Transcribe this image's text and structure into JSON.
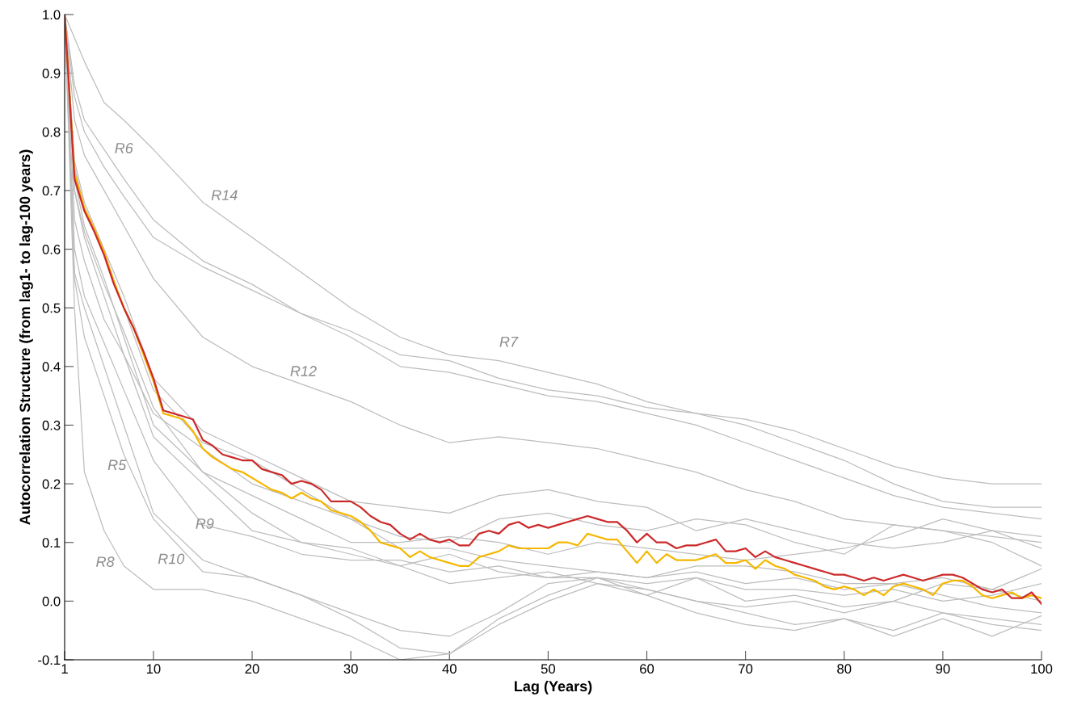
{
  "chart_data": {
    "type": "line",
    "xlabel": "Lag (Years)",
    "ylabel": "Autocorrelation Structure (from lag1- to lag-100 years)",
    "xlim": [
      1,
      100
    ],
    "xticks": [
      1,
      10,
      20,
      30,
      40,
      50,
      60,
      70,
      80,
      90,
      100
    ],
    "ylim": [
      -0.1,
      1.0
    ],
    "yticks": [
      -0.1,
      {
        "value": 0.0,
        "label": "0.0"
      },
      0.1,
      0.2,
      0.3,
      0.4,
      0.5,
      0.6,
      0.7,
      0.8,
      0.9,
      {
        "value": 1.0,
        "label": "1.0"
      }
    ],
    "grid": false,
    "marker": "none",
    "line_style": "solid",
    "series": [
      {
        "color": "#bdbdbd",
        "x": [
          1,
          2,
          3,
          5,
          7,
          10,
          15,
          20,
          25,
          30,
          35,
          40,
          45,
          50,
          55,
          60,
          65,
          70,
          75,
          80,
          85,
          90,
          95,
          100
        ],
        "values": [
          1.0,
          0.96,
          0.92,
          0.85,
          0.82,
          0.77,
          0.68,
          0.62,
          0.56,
          0.5,
          0.45,
          0.42,
          0.41,
          0.39,
          0.37,
          0.34,
          0.32,
          0.31,
          0.29,
          0.26,
          0.23,
          0.21,
          0.2,
          0.2
        ]
      },
      {
        "color": "#bdbdbd",
        "x": [
          1,
          2,
          3,
          5,
          7,
          10,
          15,
          20,
          25,
          30,
          35,
          40,
          45,
          50,
          55,
          60,
          65,
          70,
          75,
          80,
          85,
          90,
          95,
          100
        ],
        "values": [
          1.0,
          0.88,
          0.82,
          0.77,
          0.72,
          0.65,
          0.58,
          0.54,
          0.49,
          0.46,
          0.42,
          0.41,
          0.38,
          0.36,
          0.35,
          0.33,
          0.32,
          0.3,
          0.27,
          0.24,
          0.2,
          0.17,
          0.16,
          0.16
        ]
      },
      {
        "color": "#bdbdbd",
        "x": [
          1,
          2,
          3,
          5,
          7,
          10,
          15,
          20,
          25,
          30,
          35,
          40,
          45,
          50,
          55,
          60,
          65,
          70,
          75,
          80,
          85,
          90,
          95,
          100
        ],
        "values": [
          1.0,
          0.86,
          0.8,
          0.74,
          0.69,
          0.62,
          0.57,
          0.53,
          0.49,
          0.45,
          0.4,
          0.39,
          0.37,
          0.35,
          0.34,
          0.32,
          0.3,
          0.27,
          0.24,
          0.21,
          0.18,
          0.16,
          0.15,
          0.14
        ]
      },
      {
        "color": "#bdbdbd",
        "x": [
          1,
          2,
          3,
          5,
          7,
          10,
          15,
          20,
          25,
          30,
          35,
          40,
          45,
          50,
          55,
          60,
          65,
          70,
          75,
          80,
          85,
          90,
          95,
          100
        ],
        "values": [
          1.0,
          0.82,
          0.76,
          0.7,
          0.64,
          0.55,
          0.45,
          0.4,
          0.37,
          0.34,
          0.3,
          0.27,
          0.28,
          0.27,
          0.26,
          0.24,
          0.22,
          0.19,
          0.17,
          0.14,
          0.13,
          0.12,
          0.11,
          0.1
        ]
      },
      {
        "color": "#bdbdbd",
        "x": [
          1,
          2,
          3,
          5,
          7,
          10,
          15,
          20,
          25,
          30,
          35,
          40,
          45,
          50,
          55,
          60,
          65,
          70,
          75,
          80,
          85,
          90,
          95,
          100
        ],
        "values": [
          1.0,
          0.75,
          0.68,
          0.6,
          0.52,
          0.38,
          0.29,
          0.25,
          0.21,
          0.17,
          0.16,
          0.15,
          0.18,
          0.19,
          0.17,
          0.16,
          0.12,
          0.14,
          0.12,
          0.1,
          0.09,
          0.1,
          0.12,
          0.11
        ]
      },
      {
        "color": "#bdbdbd",
        "x": [
          1,
          2,
          3,
          5,
          7,
          10,
          15,
          20,
          25,
          30,
          35,
          40,
          45,
          50,
          55,
          60,
          65,
          70,
          75,
          80,
          85,
          90,
          95,
          100
        ],
        "values": [
          1.0,
          0.74,
          0.67,
          0.59,
          0.5,
          0.36,
          0.27,
          0.24,
          0.19,
          0.14,
          0.11,
          0.1,
          0.14,
          0.15,
          0.13,
          0.12,
          0.14,
          0.13,
          0.1,
          0.08,
          0.13,
          0.12,
          0.1,
          0.06
        ]
      },
      {
        "color": "#bdbdbd",
        "x": [
          1,
          2,
          3,
          5,
          7,
          10,
          15,
          20,
          25,
          30,
          35,
          40,
          45,
          50,
          55,
          60,
          65,
          70,
          75,
          80,
          85,
          90,
          95,
          100
        ],
        "values": [
          1.0,
          0.7,
          0.63,
          0.54,
          0.46,
          0.33,
          0.22,
          0.18,
          0.14,
          0.1,
          0.1,
          0.11,
          0.1,
          0.08,
          0.1,
          0.09,
          0.08,
          0.07,
          0.08,
          0.09,
          0.11,
          0.14,
          0.12,
          0.09
        ]
      },
      {
        "color": "#bdbdbd",
        "x": [
          1,
          2,
          3,
          5,
          7,
          10,
          15,
          20,
          25,
          30,
          35,
          40,
          45,
          50,
          55,
          60,
          65,
          70,
          75,
          80,
          85,
          90,
          95,
          100
        ],
        "values": [
          1.0,
          0.72,
          0.64,
          0.55,
          0.45,
          0.3,
          0.22,
          0.15,
          0.1,
          0.09,
          0.06,
          0.03,
          0.04,
          0.05,
          0.03,
          0.01,
          0.04,
          0.0,
          0.01,
          -0.01,
          0.0,
          0.03,
          0.02,
          0.055
        ]
      },
      {
        "color": "#bdbdbd",
        "x": [
          1,
          2,
          3,
          5,
          7,
          10,
          15,
          20,
          25,
          30,
          35,
          40,
          45,
          50,
          55,
          60,
          65,
          70,
          75,
          80,
          85,
          90,
          95,
          100
        ],
        "values": [
          1.0,
          0.7,
          0.62,
          0.52,
          0.42,
          0.28,
          0.2,
          0.12,
          0.1,
          0.08,
          0.06,
          0.08,
          0.05,
          0.04,
          0.05,
          0.04,
          0.06,
          0.06,
          0.05,
          0.03,
          0.03,
          0.04,
          0.02,
          0.0
        ]
      },
      {
        "color": "#bdbdbd",
        "x": [
          1,
          2,
          3,
          5,
          7,
          10,
          15,
          20,
          25,
          30,
          35,
          40,
          45,
          50,
          55,
          60,
          65,
          70,
          75,
          80,
          85,
          90,
          95,
          100
        ],
        "values": [
          1.0,
          0.65,
          0.58,
          0.48,
          0.42,
          0.32,
          0.26,
          0.2,
          0.17,
          0.14,
          0.09,
          0.09,
          0.07,
          0.06,
          0.05,
          0.04,
          0.05,
          0.03,
          0.04,
          0.02,
          0.03,
          0.01,
          -0.01,
          -0.02
        ]
      },
      {
        "color": "#bdbdbd",
        "x": [
          1,
          2,
          3,
          5,
          7,
          10,
          15,
          20,
          25,
          30,
          35,
          40,
          45,
          50,
          55,
          60,
          65,
          70,
          75,
          80,
          85,
          90,
          95,
          100
        ],
        "values": [
          1.0,
          0.6,
          0.52,
          0.44,
          0.36,
          0.24,
          0.13,
          0.11,
          0.08,
          0.07,
          0.07,
          0.05,
          0.06,
          0.04,
          0.04,
          0.03,
          0.04,
          0.02,
          0.02,
          0.01,
          0.02,
          0.0,
          0.01,
          0.03
        ]
      },
      {
        "color": "#bdbdbd",
        "x": [
          1,
          2,
          3,
          5,
          7,
          10,
          15,
          20,
          25,
          30,
          35,
          40,
          45,
          50,
          55,
          60,
          65,
          70,
          75,
          80,
          85,
          90,
          95,
          100
        ],
        "values": [
          1.0,
          0.56,
          0.5,
          0.4,
          0.3,
          0.15,
          0.07,
          0.04,
          0.01,
          -0.03,
          -0.08,
          -0.09,
          -0.03,
          0.01,
          0.04,
          0.01,
          -0.02,
          -0.04,
          -0.05,
          -0.03,
          -0.06,
          -0.03,
          -0.06,
          -0.025
        ]
      },
      {
        "color": "#bdbdbd",
        "x": [
          1,
          2,
          3,
          5,
          7,
          10,
          15,
          20,
          25,
          30,
          35,
          40,
          45,
          50,
          55,
          60,
          65,
          70,
          75,
          80,
          85,
          90,
          95,
          100
        ],
        "values": [
          1.0,
          0.55,
          0.45,
          0.35,
          0.25,
          0.14,
          0.05,
          0.04,
          0.01,
          -0.02,
          -0.05,
          -0.06,
          -0.02,
          0.03,
          0.04,
          0.02,
          0.0,
          -0.01,
          0.0,
          -0.02,
          0.0,
          -0.02,
          -0.03,
          -0.04
        ]
      },
      {
        "color": "#bdbdbd",
        "x": [
          1,
          2,
          3,
          5,
          7,
          10,
          15,
          20,
          25,
          30,
          35,
          40,
          45,
          50,
          55,
          60,
          65,
          70,
          75,
          80,
          85,
          90,
          95,
          100
        ],
        "values": [
          1.0,
          0.5,
          0.22,
          0.12,
          0.06,
          0.02,
          0.02,
          0.0,
          -0.03,
          -0.06,
          -0.1,
          -0.09,
          -0.04,
          0.0,
          0.03,
          0.02,
          0.0,
          -0.02,
          -0.04,
          -0.03,
          -0.05,
          -0.02,
          -0.04,
          -0.05
        ]
      },
      {
        "color": "#f5b700",
        "x": [
          1,
          2,
          3,
          4,
          5,
          6,
          7,
          8,
          9,
          10,
          11,
          12,
          13,
          14,
          15,
          16,
          17,
          18,
          19,
          20,
          21,
          22,
          23,
          24,
          25,
          26,
          27,
          28,
          29,
          30,
          31,
          32,
          33,
          34,
          35,
          36,
          37,
          38,
          39,
          40,
          41,
          42,
          43,
          44,
          45,
          46,
          47,
          48,
          49,
          50,
          51,
          52,
          53,
          54,
          55,
          56,
          57,
          58,
          59,
          60,
          61,
          62,
          63,
          64,
          65,
          66,
          67,
          68,
          69,
          70,
          71,
          72,
          73,
          74,
          75,
          76,
          77,
          78,
          79,
          80,
          81,
          82,
          83,
          84,
          85,
          86,
          87,
          88,
          89,
          90,
          91,
          92,
          93,
          94,
          95,
          96,
          97,
          98,
          99,
          100
        ],
        "values": [
          1.0,
          0.73,
          0.67,
          0.635,
          0.595,
          0.545,
          0.5,
          0.465,
          0.42,
          0.375,
          0.32,
          0.315,
          0.31,
          0.29,
          0.26,
          0.245,
          0.235,
          0.225,
          0.22,
          0.21,
          0.2,
          0.19,
          0.185,
          0.175,
          0.185,
          0.175,
          0.17,
          0.155,
          0.15,
          0.145,
          0.135,
          0.12,
          0.1,
          0.095,
          0.09,
          0.075,
          0.085,
          0.075,
          0.07,
          0.065,
          0.06,
          0.06,
          0.075,
          0.08,
          0.085,
          0.095,
          0.09,
          0.09,
          0.09,
          0.09,
          0.1,
          0.1,
          0.095,
          0.115,
          0.11,
          0.105,
          0.105,
          0.085,
          0.065,
          0.085,
          0.065,
          0.08,
          0.07,
          0.07,
          0.07,
          0.075,
          0.08,
          0.065,
          0.065,
          0.07,
          0.055,
          0.07,
          0.06,
          0.055,
          0.045,
          0.04,
          0.035,
          0.025,
          0.02,
          0.025,
          0.02,
          0.01,
          0.02,
          0.01,
          0.025,
          0.03,
          0.025,
          0.02,
          0.01,
          0.03,
          0.035,
          0.035,
          0.025,
          0.01,
          0.005,
          0.01,
          0.015,
          0.005,
          0.01,
          0.005
        ]
      },
      {
        "color": "#cc2a2a",
        "x": [
          1,
          2,
          3,
          4,
          5,
          6,
          7,
          8,
          9,
          10,
          11,
          12,
          13,
          14,
          15,
          16,
          17,
          18,
          19,
          20,
          21,
          22,
          23,
          24,
          25,
          26,
          27,
          28,
          29,
          30,
          31,
          32,
          33,
          34,
          35,
          36,
          37,
          38,
          39,
          40,
          41,
          42,
          43,
          44,
          45,
          46,
          47,
          48,
          49,
          50,
          51,
          52,
          53,
          54,
          55,
          56,
          57,
          58,
          59,
          60,
          61,
          62,
          63,
          64,
          65,
          66,
          67,
          68,
          69,
          70,
          71,
          72,
          73,
          74,
          75,
          76,
          77,
          78,
          79,
          80,
          81,
          82,
          83,
          84,
          85,
          86,
          87,
          88,
          89,
          90,
          91,
          92,
          93,
          94,
          95,
          96,
          97,
          98,
          99,
          100
        ],
        "values": [
          1.0,
          0.72,
          0.665,
          0.63,
          0.59,
          0.54,
          0.5,
          0.465,
          0.425,
          0.38,
          0.325,
          0.32,
          0.315,
          0.31,
          0.275,
          0.265,
          0.25,
          0.245,
          0.24,
          0.24,
          0.225,
          0.22,
          0.215,
          0.2,
          0.205,
          0.2,
          0.19,
          0.17,
          0.17,
          0.17,
          0.16,
          0.145,
          0.135,
          0.13,
          0.115,
          0.105,
          0.115,
          0.105,
          0.1,
          0.105,
          0.095,
          0.095,
          0.115,
          0.12,
          0.115,
          0.13,
          0.135,
          0.125,
          0.13,
          0.125,
          0.13,
          0.135,
          0.14,
          0.145,
          0.14,
          0.135,
          0.135,
          0.12,
          0.1,
          0.115,
          0.1,
          0.1,
          0.09,
          0.095,
          0.095,
          0.1,
          0.105,
          0.085,
          0.085,
          0.09,
          0.075,
          0.085,
          0.075,
          0.07,
          0.065,
          0.06,
          0.055,
          0.05,
          0.045,
          0.045,
          0.04,
          0.035,
          0.04,
          0.035,
          0.04,
          0.045,
          0.04,
          0.035,
          0.04,
          0.045,
          0.045,
          0.04,
          0.03,
          0.02,
          0.015,
          0.02,
          0.005,
          0.005,
          0.015,
          -0.005
        ]
      }
    ],
    "annotations": [
      "R6",
      "R14",
      "R7",
      "R12",
      "R5",
      "R9",
      "R10",
      "R8"
    ]
  }
}
